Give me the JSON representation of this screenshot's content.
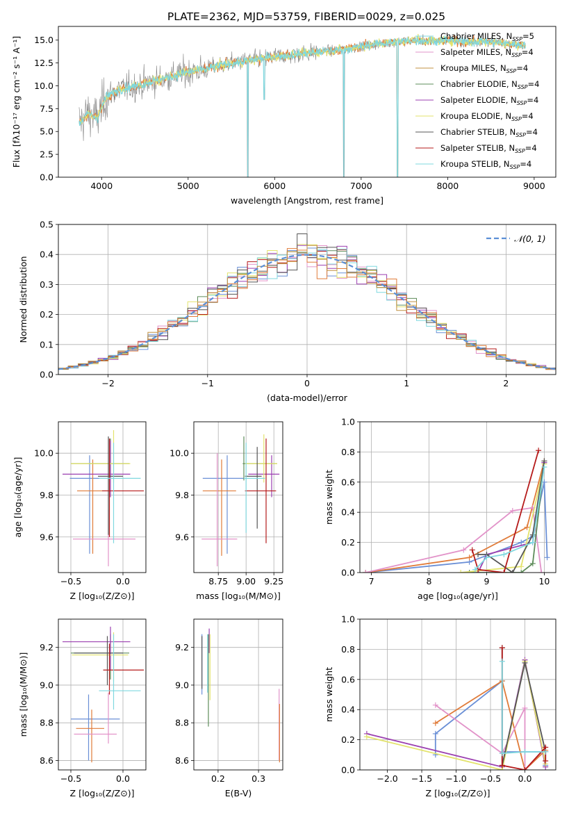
{
  "figure_title": "PLATE=2362, MJD=53759, FIBERID=0029, z=0.025",
  "colors": {
    "c0": "#6a8fd6",
    "c1": "#e07b39",
    "c2": "#e293c9",
    "c3": "#c09040",
    "c4": "#5e8c5a",
    "c5": "#9b3fb0",
    "c6": "#e3e36b",
    "c7": "#555555",
    "c8": "#b51a1a",
    "c9": "#7fd8df",
    "data": "#808080",
    "normal": "#5b8fd6",
    "grid": "#b0b0b0"
  },
  "chart_data": [
    {
      "type": "line",
      "id": "spectrum",
      "title": "PLATE=2362, MJD=53759, FIBERID=0029, z=0.025",
      "xlabel": "wavelength [Angstrom, rest frame]",
      "ylabel": "Flux [fλ10⁻¹⁷ erg cm⁻² s⁻¹ A⁻¹]",
      "xlim": [
        3500,
        9250
      ],
      "ylim": [
        0,
        16.5
      ],
      "xticks": [
        4000,
        5000,
        6000,
        7000,
        8000,
        9000
      ],
      "yticks": [
        0.0,
        2.5,
        5.0,
        7.5,
        10.0,
        12.5,
        15.0
      ],
      "grid": false,
      "legend_position": "top-right",
      "legend": [
        {
          "label": "Chabrier MILES, N",
          "sub": "SSP",
          "tail": "=5",
          "color_key": "c9"
        },
        {
          "label": "Salpeter MILES, N",
          "sub": "SSP",
          "tail": "=4",
          "color_key": "c2"
        },
        {
          "label": "Kroupa MILES, N",
          "sub": "SSP",
          "tail": "=4",
          "color_key": "c3"
        },
        {
          "label": "Chabrier ELODIE, N",
          "sub": "SSP",
          "tail": "=4",
          "color_key": "c4"
        },
        {
          "label": "Salpeter ELODIE, N",
          "sub": "SSP",
          "tail": "=4",
          "color_key": "c5"
        },
        {
          "label": "Kroupa ELODIE, N",
          "sub": "SSP",
          "tail": "=4",
          "color_key": "c6"
        },
        {
          "label": "Chabrier STELIB, N",
          "sub": "SSP",
          "tail": "=4",
          "color_key": "c7"
        },
        {
          "label": "Salpeter STELIB, N",
          "sub": "SSP",
          "tail": "=4",
          "color_key": "c8"
        },
        {
          "label": "Kroupa STELIB, N",
          "sub": "SSP",
          "tail": "=4",
          "color_key": "c9"
        }
      ],
      "continuum": {
        "x": [
          3750,
          3850,
          3950,
          4050,
          4200,
          4400,
          4600,
          4800,
          5000,
          5200,
          5400,
          5600,
          5800,
          6000,
          6200,
          6400,
          6600,
          6800,
          7000,
          7200,
          7400,
          7600,
          7800,
          8000,
          8200,
          8400,
          8600,
          8800
        ],
        "y": [
          6.0,
          7.0,
          6.4,
          8.8,
          9.6,
          10.0,
          10.5,
          11.0,
          11.5,
          11.8,
          12.3,
          12.6,
          12.9,
          13.2,
          13.4,
          13.6,
          13.8,
          14.0,
          14.3,
          14.6,
          14.8,
          15.0,
          14.9,
          15.0,
          14.8,
          14.9,
          14.7,
          14.5
        ]
      },
      "dips": [
        [
          5690,
          0.0
        ],
        [
          5880,
          8.5
        ],
        [
          6800,
          0.0
        ],
        [
          7420,
          0.0
        ]
      ]
    },
    {
      "type": "histogram",
      "id": "residuals",
      "xlabel": "(data-model)/error",
      "ylabel": "Normed distribution",
      "xlim": [
        -2.5,
        2.5
      ],
      "ylim": [
        0.0,
        0.5
      ],
      "xticks": [
        -2,
        -1,
        0,
        1,
        2
      ],
      "yticks": [
        0.0,
        0.1,
        0.2,
        0.3,
        0.4,
        0.5
      ],
      "grid": true,
      "bins": {
        "start": -2.5,
        "width": 0.1,
        "count": 50
      },
      "reference_curve": {
        "label": "N(0,1)",
        "mean": 0,
        "sigma": 1,
        "style": "dashed"
      },
      "legend_position": "top-right"
    },
    {
      "type": "scatter",
      "id": "z_age",
      "xlabel": "Z [log₁₀(Z/Z⊙)]",
      "ylabel": "age  [log₁₀(age/yr)]",
      "xlim": [
        -0.62,
        0.22
      ],
      "ylim": [
        9.43,
        10.15
      ],
      "xticks": [
        -0.5,
        0.0
      ],
      "xtick_labels": [
        "−0.5",
        "0.0"
      ],
      "yticks": [
        9.6,
        9.8,
        10.0
      ],
      "yticks_labels": [
        "9.6",
        "9.8",
        "10.0"
      ],
      "grid": true,
      "points": [
        {
          "x": -0.32,
          "y": 9.88,
          "xlo": -0.51,
          "xhi": -0.13,
          "ylo": 9.52,
          "yhi": 9.99,
          "color_key": "c0"
        },
        {
          "x": -0.29,
          "y": 9.82,
          "xlo": -0.44,
          "xhi": -0.14,
          "ylo": 9.52,
          "yhi": 9.97,
          "color_key": "c1"
        },
        {
          "x": -0.14,
          "y": 9.59,
          "xlo": -0.48,
          "xhi": 0.12,
          "ylo": 9.46,
          "yhi": 9.73,
          "color_key": "c2"
        },
        {
          "x": -0.12,
          "y": 9.95,
          "xlo": -0.5,
          "xhi": 0.06,
          "ylo": 9.88,
          "yhi": 10.07,
          "color_key": "c4"
        },
        {
          "x": -0.12,
          "y": 9.9,
          "xlo": -0.58,
          "xhi": 0.07,
          "ylo": 9.79,
          "yhi": 10.06,
          "color_key": "c5"
        },
        {
          "x": -0.09,
          "y": 9.95,
          "xlo": -0.5,
          "xhi": 0.07,
          "ylo": 9.86,
          "yhi": 10.11,
          "color_key": "c6"
        },
        {
          "x": -0.14,
          "y": 9.89,
          "xlo": -0.24,
          "xhi": 0.0,
          "ylo": 9.61,
          "yhi": 10.08,
          "color_key": "c7"
        },
        {
          "x": -0.13,
          "y": 9.82,
          "xlo": -0.2,
          "xhi": 0.2,
          "ylo": 9.6,
          "yhi": 10.07,
          "color_key": "c8"
        },
        {
          "x": -0.09,
          "y": 9.88,
          "xlo": -0.23,
          "xhi": 0.17,
          "ylo": 9.57,
          "yhi": 10.05,
          "color_key": "c9"
        }
      ]
    },
    {
      "type": "scatter",
      "id": "mass_age",
      "xlabel": "mass [log₁₀(M/M⊙)]",
      "ylabel": "",
      "xlim": [
        8.53,
        9.33
      ],
      "ylim": [
        9.43,
        10.15
      ],
      "xticks": [
        8.75,
        9.0,
        9.25
      ],
      "xtick_labels": [
        "8.75",
        "9.00",
        "9.25"
      ],
      "yticks": [
        9.6,
        9.8,
        10.0
      ],
      "yticks_labels": [
        "9.6",
        "9.8",
        "10.0"
      ],
      "grid": true,
      "points": [
        {
          "x": 8.83,
          "y": 9.88,
          "xlo": 8.61,
          "xhi": 8.98,
          "ylo": 9.52,
          "yhi": 9.99,
          "color_key": "c0"
        },
        {
          "x": 8.78,
          "y": 9.82,
          "xlo": 8.61,
          "xhi": 8.91,
          "ylo": 9.51,
          "yhi": 9.97,
          "color_key": "c1"
        },
        {
          "x": 8.74,
          "y": 9.59,
          "xlo": 8.6,
          "xhi": 8.92,
          "ylo": 9.46,
          "yhi": 10.0,
          "color_key": "c2"
        },
        {
          "x": 8.98,
          "y": 9.95,
          "xlo": 8.97,
          "xhi": 9.28,
          "ylo": 9.87,
          "yhi": 10.08,
          "color_key": "c4"
        },
        {
          "x": 9.23,
          "y": 9.9,
          "xlo": 9.02,
          "xhi": 9.3,
          "ylo": 9.79,
          "yhi": 9.99,
          "color_key": "c5"
        },
        {
          "x": 9.16,
          "y": 9.95,
          "xlo": 8.99,
          "xhi": 9.28,
          "ylo": 9.86,
          "yhi": 10.09,
          "color_key": "c6"
        },
        {
          "x": 9.1,
          "y": 9.89,
          "xlo": 8.99,
          "xhi": 9.14,
          "ylo": 9.64,
          "yhi": 10.03,
          "color_key": "c7"
        },
        {
          "x": 9.18,
          "y": 9.82,
          "xlo": 8.99,
          "xhi": 9.27,
          "ylo": 9.57,
          "yhi": 10.07,
          "color_key": "c8"
        },
        {
          "x": 9.0,
          "y": 9.88,
          "xlo": 8.98,
          "xhi": 9.17,
          "ylo": 9.62,
          "yhi": 10.05,
          "color_key": "c9"
        }
      ]
    },
    {
      "type": "line",
      "id": "age_weight",
      "xlabel": "age  [log₁₀(age/yr)]",
      "ylabel": "mass weight",
      "xlim": [
        6.8,
        10.2
      ],
      "ylim": [
        0.0,
        1.0
      ],
      "xticks": [
        7,
        8,
        9,
        10
      ],
      "yticks": [
        0.0,
        0.2,
        0.4,
        0.6,
        0.8,
        1.0
      ],
      "grid": true,
      "series": [
        {
          "color_key": "c0",
          "x": [
            6.9,
            8.7,
            9.6,
            9.8,
            10.0,
            10.05
          ],
          "y": [
            0.0,
            0.07,
            0.2,
            0.24,
            0.6,
            0.1
          ]
        },
        {
          "color_key": "c1",
          "x": [
            6.9,
            8.7,
            9.7,
            10.0
          ],
          "y": [
            0.0,
            0.1,
            0.3,
            0.74
          ]
        },
        {
          "color_key": "c2",
          "x": [
            6.9,
            8.6,
            9.45,
            9.8,
            9.95
          ],
          "y": [
            0.0,
            0.15,
            0.41,
            0.43,
            0.0
          ]
        },
        {
          "color_key": "c4",
          "x": [
            8.7,
            9.6,
            9.8,
            10.0
          ],
          "y": [
            0.0,
            0.0,
            0.06,
            0.73
          ]
        },
        {
          "color_key": "c5",
          "x": [
            8.85,
            9.0,
            9.8,
            10.0
          ],
          "y": [
            0.0,
            0.12,
            0.2,
            0.73
          ]
        },
        {
          "color_key": "c6",
          "x": [
            8.55,
            9.6,
            10.0
          ],
          "y": [
            0.0,
            0.04,
            0.72
          ]
        },
        {
          "color_key": "c7",
          "x": [
            8.85,
            9.0,
            9.45,
            9.8,
            10.0
          ],
          "y": [
            0.12,
            0.12,
            0.0,
            0.25,
            0.74
          ]
        },
        {
          "color_key": "c8",
          "x": [
            8.75,
            8.85,
            9.3,
            9.9
          ],
          "y": [
            0.15,
            0.02,
            0.0,
            0.81
          ]
        },
        {
          "color_key": "c9",
          "x": [
            8.8,
            9.0,
            9.3,
            9.8,
            10.0
          ],
          "y": [
            0.02,
            0.1,
            0.12,
            0.2,
            0.7
          ]
        }
      ]
    },
    {
      "type": "scatter",
      "id": "z_mass",
      "xlabel": "Z [log₁₀(Z/Z⊙)]",
      "ylabel": "mass [log₁₀(M/M⊙)]",
      "xlim": [
        -0.62,
        0.22
      ],
      "ylim": [
        8.55,
        9.35
      ],
      "xticks": [
        -0.5,
        0.0
      ],
      "xtick_labels": [
        "−0.5",
        "0.0"
      ],
      "yticks": [
        8.6,
        8.8,
        9.0,
        9.2
      ],
      "yticks_labels": [
        "8.6",
        "8.8",
        "9.0",
        "9.2"
      ],
      "grid": true,
      "points": [
        {
          "x": -0.33,
          "y": 8.82,
          "xlo": -0.5,
          "xhi": -0.03,
          "ylo": 8.6,
          "yhi": 8.95,
          "color_key": "c0"
        },
        {
          "x": -0.3,
          "y": 8.77,
          "xlo": -0.45,
          "xhi": -0.18,
          "ylo": 8.59,
          "yhi": 8.87,
          "color_key": "c1"
        },
        {
          "x": -0.14,
          "y": 8.74,
          "xlo": -0.47,
          "xhi": -0.06,
          "ylo": 8.69,
          "yhi": 8.96,
          "color_key": "c2"
        },
        {
          "x": -0.12,
          "y": 9.17,
          "xlo": -0.5,
          "xhi": 0.06,
          "ylo": 9.03,
          "yhi": 9.27,
          "color_key": "c4"
        },
        {
          "x": -0.12,
          "y": 9.23,
          "xlo": -0.58,
          "xhi": 0.07,
          "ylo": 9.08,
          "yhi": 9.31,
          "color_key": "c5"
        },
        {
          "x": -0.09,
          "y": 9.16,
          "xlo": -0.49,
          "xhi": 0.05,
          "ylo": 9.02,
          "yhi": 9.28,
          "color_key": "c6"
        },
        {
          "x": -0.15,
          "y": 9.17,
          "xlo": -0.47,
          "xhi": 0.0,
          "ylo": 9.0,
          "yhi": 9.26,
          "color_key": "c7"
        },
        {
          "x": -0.13,
          "y": 9.08,
          "xlo": -0.19,
          "xhi": 0.2,
          "ylo": 8.95,
          "yhi": 9.22,
          "color_key": "c8"
        },
        {
          "x": -0.09,
          "y": 8.97,
          "xlo": -0.23,
          "xhi": 0.17,
          "ylo": 8.87,
          "yhi": 9.27,
          "color_key": "c9"
        }
      ]
    },
    {
      "type": "scatter",
      "id": "ebv_mass",
      "xlabel": "E(B-V)",
      "ylabel": "",
      "xlim": [
        0.14,
        0.36
      ],
      "ylim": [
        8.55,
        9.35
      ],
      "xticks": [
        0.2,
        0.3
      ],
      "xtick_labels": [
        "0.2",
        "0.3"
      ],
      "yticks": [
        8.6,
        8.8,
        9.0,
        9.2
      ],
      "yticks_labels": [
        "8.6",
        "8.8",
        "9.0",
        "9.2"
      ],
      "grid": true,
      "points": [
        {
          "x": 0.16,
          "y": 8.97,
          "xlo": 0.16,
          "xhi": 0.16,
          "ylo": 8.95,
          "yhi": 9.27,
          "color_key": "c0"
        },
        {
          "x": 0.16,
          "y": 9.0,
          "xlo": 0.16,
          "xhi": 0.16,
          "ylo": 8.98,
          "yhi": 9.26,
          "color_key": "c7"
        },
        {
          "x": 0.176,
          "y": 9.12,
          "xlo": 0.176,
          "xhi": 0.176,
          "ylo": 8.78,
          "yhi": 9.27,
          "color_key": "c4"
        },
        {
          "x": 0.178,
          "y": 9.22,
          "xlo": 0.178,
          "xhi": 0.178,
          "ylo": 9.17,
          "yhi": 9.3,
          "color_key": "c5"
        },
        {
          "x": 0.18,
          "y": 9.12,
          "xlo": 0.18,
          "xhi": 0.18,
          "ylo": 8.92,
          "yhi": 9.27,
          "color_key": "c6"
        },
        {
          "x": 0.174,
          "y": 9.1,
          "xlo": 0.174,
          "xhi": 0.174,
          "ylo": 8.96,
          "yhi": 9.27,
          "color_key": "c9"
        },
        {
          "x": 0.351,
          "y": 8.8,
          "xlo": 0.351,
          "xhi": 0.351,
          "ylo": 8.6,
          "yhi": 8.98,
          "color_key": "c2"
        },
        {
          "x": 0.352,
          "y": 8.75,
          "xlo": 0.352,
          "xhi": 0.352,
          "ylo": 8.59,
          "yhi": 8.9,
          "color_key": "c1"
        }
      ]
    },
    {
      "type": "line",
      "id": "z_weight",
      "xlabel": "Z [log₁₀(Z/Z⊙)]",
      "ylabel": "mass weight",
      "xlim": [
        -2.4,
        0.45
      ],
      "ylim": [
        0.0,
        1.0
      ],
      "xticks": [
        -2.0,
        -1.5,
        -1.0,
        -0.5,
        0.0
      ],
      "xtick_labels": [
        "−2.0",
        "−1.5",
        "−1.0",
        "−0.5",
        "0.0"
      ],
      "yticks": [
        0.0,
        0.2,
        0.4,
        0.6,
        0.8,
        1.0
      ],
      "yticks_labels": [
        "0.0",
        "0.2",
        "0.4",
        "0.6",
        "0.8",
        "1.0"
      ],
      "grid": true,
      "series": [
        {
          "color_key": "c0",
          "x": [
            -1.3,
            -1.3,
            -0.33,
            -0.33,
            0.3,
            0.3
          ],
          "y": [
            0.1,
            0.24,
            0.59,
            0.12,
            0.12,
            0.03
          ]
        },
        {
          "color_key": "c1",
          "x": [
            -1.3,
            -0.33,
            0.0,
            0.3
          ],
          "y": [
            0.31,
            0.59,
            0.0,
            0.13
          ]
        },
        {
          "color_key": "c2",
          "x": [
            -1.3,
            -0.33,
            0.0,
            0.0,
            0.3
          ],
          "y": [
            0.43,
            0.11,
            0.41,
            0.0,
            0.15
          ]
        },
        {
          "color_key": "c5",
          "x": [
            -2.3,
            -0.33,
            0.0,
            0.3
          ],
          "y": [
            0.24,
            0.02,
            0.73,
            0.02
          ]
        },
        {
          "color_key": "c6",
          "x": [
            -2.3,
            -0.33,
            0.0,
            0.3
          ],
          "y": [
            0.22,
            0.0,
            0.72,
            0.04
          ]
        },
        {
          "color_key": "c7",
          "x": [
            -0.33,
            -0.33,
            0.0,
            0.3
          ],
          "y": [
            0.81,
            0.03,
            0.71,
            0.12
          ]
        },
        {
          "color_key": "c8",
          "x": [
            -0.33,
            -0.33,
            0.0,
            0.3,
            0.3
          ],
          "y": [
            0.81,
            0.03,
            0.0,
            0.15,
            0.06
          ]
        },
        {
          "color_key": "c9",
          "x": [
            -0.33,
            -0.33,
            0.0,
            0.3
          ],
          "y": [
            0.72,
            0.11,
            0.12,
            0.12
          ]
        }
      ]
    }
  ]
}
